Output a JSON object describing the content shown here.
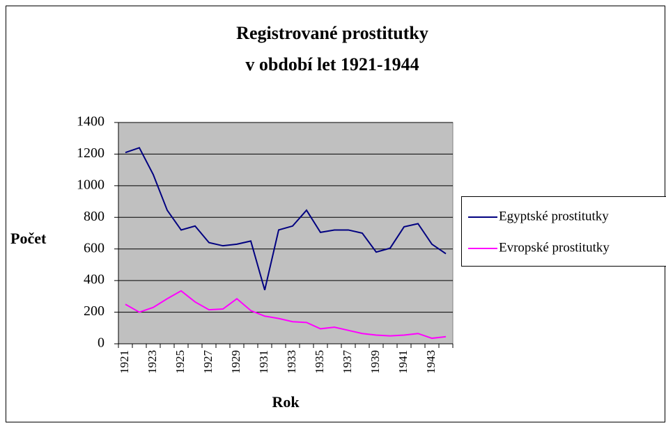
{
  "chart_data": {
    "type": "line",
    "title": [
      "Registrované prostitutky",
      "v období let 1921-1944"
    ],
    "y_label": "Počet",
    "x_label": "Rok",
    "categories": [
      "1921",
      null,
      "1923",
      null,
      "1925",
      null,
      "1927",
      null,
      "1929",
      null,
      "1931",
      null,
      "1933",
      null,
      "1935",
      null,
      "1937",
      null,
      "1939",
      null,
      "1941",
      null,
      "1943",
      null
    ],
    "series": [
      {
        "name": "Egyptské prostitutky",
        "color": "#000080",
        "values": [
          1210,
          1240,
          1070,
          845,
          720,
          745,
          640,
          620,
          630,
          650,
          340,
          720,
          745,
          845,
          705,
          720,
          720,
          700,
          580,
          605,
          740,
          760,
          630,
          570
        ]
      },
      {
        "name": "Evropské prostitutky",
        "color": "#ff00ff",
        "values": [
          250,
          200,
          230,
          285,
          335,
          265,
          215,
          220,
          285,
          210,
          175,
          160,
          140,
          135,
          95,
          105,
          85,
          65,
          55,
          50,
          55,
          65,
          35,
          45
        ]
      }
    ],
    "ylim": [
      0,
      1400
    ],
    "yticks": [
      0,
      200,
      400,
      600,
      800,
      1000,
      1200,
      1400
    ],
    "grid": true,
    "legend": "right",
    "plot_background": "#c0c0c0"
  }
}
